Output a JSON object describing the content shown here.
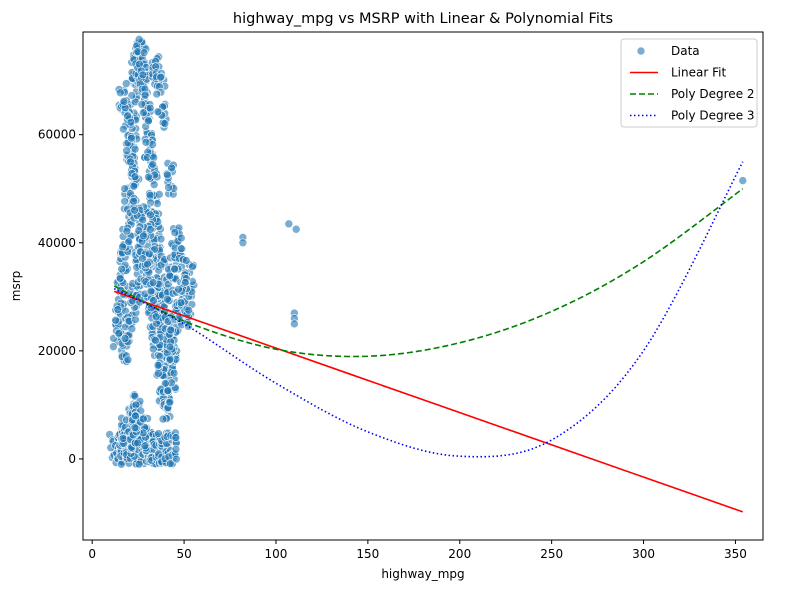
{
  "chart_data": {
    "type": "scatter",
    "title": "highway_mpg vs MSRP with Linear & Polynomial Fits",
    "xlabel": "highway_mpg",
    "ylabel": "msrp",
    "xlim": [
      -5,
      365
    ],
    "ylim": [
      -15000,
      79000
    ],
    "xticks": [
      0,
      50,
      100,
      150,
      200,
      250,
      300,
      350
    ],
    "yticks": [
      0,
      20000,
      40000,
      60000
    ],
    "legend_position": "top-right",
    "series": [
      {
        "name": "Data",
        "kind": "scatter",
        "color": "#1f77b4",
        "points": [
          [
            12,
            2000
          ],
          [
            14,
            2000
          ],
          [
            16,
            2000
          ],
          [
            18,
            2000
          ],
          [
            20,
            2000
          ],
          [
            22,
            2000
          ],
          [
            24,
            2000
          ],
          [
            26,
            2000
          ],
          [
            28,
            2000
          ],
          [
            30,
            2000
          ],
          [
            32,
            2000
          ],
          [
            34,
            2000
          ],
          [
            36,
            2000
          ],
          [
            38,
            2000
          ],
          [
            40,
            2000
          ],
          [
            42,
            2000
          ],
          [
            44,
            2000
          ],
          [
            16,
            4000
          ],
          [
            18,
            5500
          ],
          [
            20,
            7000
          ],
          [
            22,
            9000
          ],
          [
            24,
            8000
          ],
          [
            26,
            6000
          ],
          [
            28,
            4500
          ],
          [
            19,
            3000
          ],
          [
            23,
            3500
          ],
          [
            14,
            22000
          ],
          [
            15,
            26000
          ],
          [
            16,
            30000
          ],
          [
            17,
            34000
          ],
          [
            18,
            38000
          ],
          [
            19,
            42000
          ],
          [
            20,
            48000
          ],
          [
            21,
            55000
          ],
          [
            22,
            62000
          ],
          [
            23,
            68000
          ],
          [
            24,
            72000
          ],
          [
            25,
            74000
          ],
          [
            26,
            75000
          ],
          [
            27,
            73000
          ],
          [
            28,
            70000
          ],
          [
            29,
            66000
          ],
          [
            30,
            62000
          ],
          [
            31,
            58000
          ],
          [
            32,
            54000
          ],
          [
            33,
            50000
          ],
          [
            34,
            46000
          ],
          [
            35,
            42000
          ],
          [
            36,
            38000
          ],
          [
            37,
            34000
          ],
          [
            38,
            30000
          ],
          [
            39,
            26000
          ],
          [
            40,
            22000
          ],
          [
            41,
            18000
          ],
          [
            42,
            16000
          ],
          [
            43,
            14000
          ],
          [
            44,
            20000
          ],
          [
            18,
            20000
          ],
          [
            20,
            24000
          ],
          [
            22,
            28000
          ],
          [
            24,
            32000
          ],
          [
            26,
            36000
          ],
          [
            28,
            40000
          ],
          [
            30,
            44000
          ],
          [
            32,
            36000
          ],
          [
            34,
            30000
          ],
          [
            36,
            26000
          ],
          [
            38,
            24000
          ],
          [
            40,
            28000
          ],
          [
            42,
            32000
          ],
          [
            44,
            36000
          ],
          [
            46,
            26000
          ],
          [
            48,
            30000
          ],
          [
            50,
            27000
          ],
          [
            52,
            29000
          ],
          [
            53,
            33000
          ],
          [
            17,
            67000
          ],
          [
            19,
            64000
          ],
          [
            21,
            58000
          ],
          [
            23,
            52000
          ],
          [
            25,
            46000
          ],
          [
            27,
            40000
          ],
          [
            29,
            35000
          ],
          [
            31,
            30000
          ],
          [
            33,
            25000
          ],
          [
            35,
            20000
          ],
          [
            37,
            15000
          ],
          [
            39,
            12000
          ],
          [
            41,
            10000
          ],
          [
            43,
            21000
          ],
          [
            35,
            72000
          ],
          [
            37,
            70000
          ],
          [
            38,
            64000
          ],
          [
            42,
            52000
          ],
          [
            45,
            40000
          ],
          [
            47,
            38000
          ],
          [
            49,
            34000
          ],
          [
            82,
            41000
          ],
          [
            82,
            40000
          ],
          [
            107,
            43500
          ],
          [
            111,
            42500
          ],
          [
            110,
            27000
          ],
          [
            110,
            26000
          ],
          [
            110,
            25000
          ],
          [
            354,
            51500
          ]
        ]
      },
      {
        "name": "Linear Fit",
        "kind": "line",
        "color": "#ff0000",
        "dash": "solid",
        "x": [
          12,
          354
        ],
        "y": [
          31000,
          -9800
        ]
      },
      {
        "name": "Poly Degree 2",
        "kind": "line",
        "color": "#008000",
        "dash": "dashed",
        "x": [
          12,
          50,
          100,
          150,
          200,
          250,
          300,
          354
        ],
        "y": [
          32000,
          25500,
          20300,
          19000,
          21500,
          27300,
          36500,
          50000
        ]
      },
      {
        "name": "Poly Degree 3",
        "kind": "line",
        "color": "#0000ff",
        "dash": "dotted",
        "x": [
          12,
          50,
          100,
          150,
          200,
          250,
          300,
          354
        ],
        "y": [
          31500,
          25000,
          14000,
          5000,
          500,
          3500,
          20000,
          55000
        ]
      }
    ]
  }
}
